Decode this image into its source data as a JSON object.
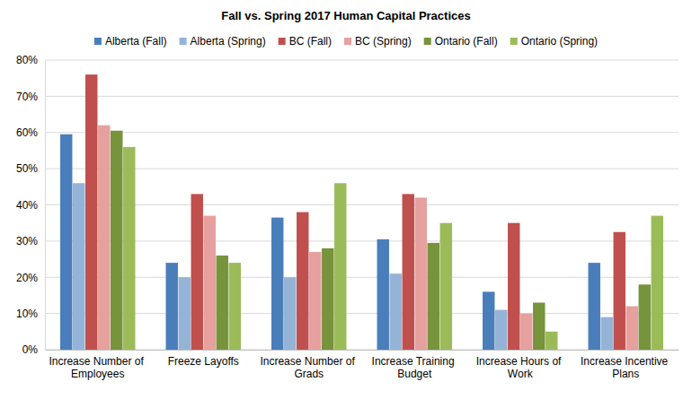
{
  "chart_data": {
    "type": "bar",
    "title": "Fall vs. Spring 2017 Human Capital Practices",
    "categories": [
      "Increase Number of Employees",
      "Freeze Layoffs",
      "Increase Number of Grads",
      "Increase Training Budget",
      "Increase Hours of Work",
      "Increase Incentive Plans"
    ],
    "series": [
      {
        "name": "Alberta (Fall)",
        "color": "#4a7ebb",
        "values": [
          59.5,
          24,
          36.5,
          30.5,
          16,
          24
        ]
      },
      {
        "name": "Alberta (Spring)",
        "color": "#95b3d7",
        "values": [
          46,
          20,
          20,
          21,
          11,
          9
        ]
      },
      {
        "name": "BC (Fall)",
        "color": "#c0504d",
        "values": [
          76,
          43,
          38,
          43,
          35,
          32.5
        ]
      },
      {
        "name": "BC (Spring)",
        "color": "#e6a09e",
        "values": [
          62,
          37,
          27,
          42,
          10,
          12
        ]
      },
      {
        "name": "Ontario (Fall)",
        "color": "#77933c",
        "values": [
          60.5,
          26,
          28,
          29.5,
          13,
          18
        ]
      },
      {
        "name": "Ontario (Spring)",
        "color": "#9bbb59",
        "values": [
          56,
          24,
          46,
          35,
          5,
          37
        ]
      }
    ],
    "ylim": [
      0,
      80
    ],
    "yticks": [
      {
        "value": 0,
        "label": "0%"
      },
      {
        "value": 10,
        "label": "10%"
      },
      {
        "value": 20,
        "label": "20%"
      },
      {
        "value": 30,
        "label": "30%"
      },
      {
        "value": 40,
        "label": "40%"
      },
      {
        "value": 50,
        "label": "50%"
      },
      {
        "value": 60,
        "label": "60%"
      },
      {
        "value": 70,
        "label": "70%"
      },
      {
        "value": 80,
        "label": "80%"
      }
    ],
    "grid": true,
    "legend": "top"
  }
}
